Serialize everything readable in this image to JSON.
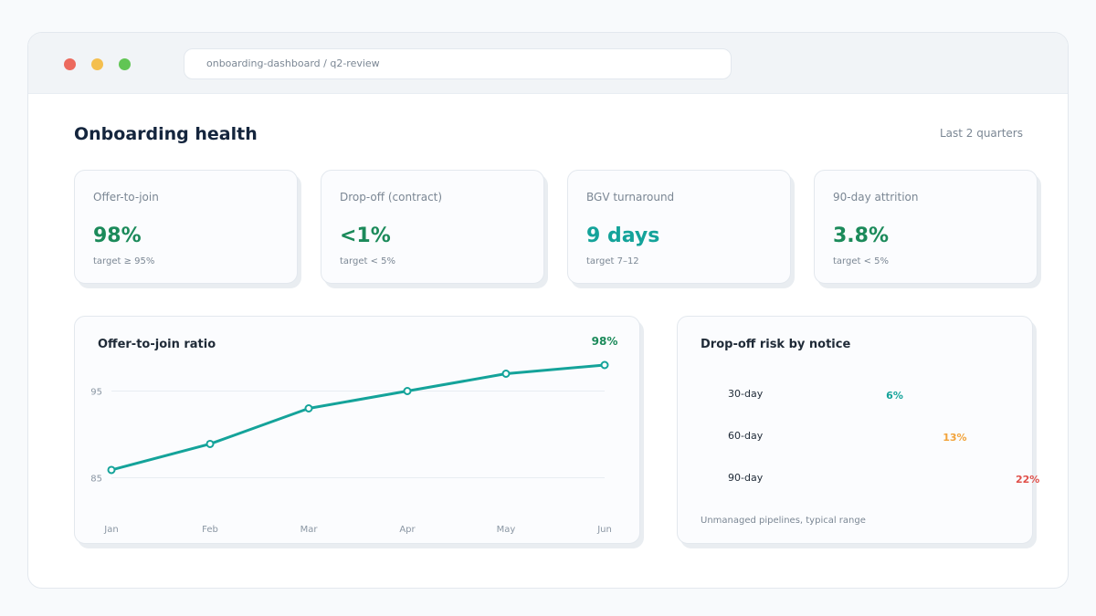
{
  "browser": {
    "url": "onboarding-dashboard / q2-review",
    "dots": {
      "red": "#ec6a5e",
      "yellow": "#f4bf4f",
      "green": "#61c554"
    }
  },
  "header": {
    "title": "Onboarding health",
    "period": "Last 2 quarters"
  },
  "kpis": [
    {
      "label": "Offer-to-join",
      "value": "98%",
      "target": "target ≥ 95%",
      "color": "#1b8a5a"
    },
    {
      "label": "Drop-off (contract)",
      "value": "<1%",
      "target": "target < 5%",
      "color": "#1b8a5a"
    },
    {
      "label": "BGV turnaround",
      "value": "9 days",
      "target": "target 7–12",
      "color": "#14a39a"
    },
    {
      "label": "90-day attrition",
      "value": "3.8%",
      "target": "target < 5%",
      "color": "#1b8a5a"
    }
  ],
  "line_panel": {
    "title": "Offer-to-join ratio",
    "end_label": "98%"
  },
  "risk_panel": {
    "title": "Drop-off risk by notice",
    "rows": [
      {
        "label": "30-day",
        "value": "6%",
        "pct": 6,
        "color": "#14a39a"
      },
      {
        "label": "60-day",
        "value": "13%",
        "pct": 13,
        "color": "#f2a33a"
      },
      {
        "label": "90-day",
        "value": "22%",
        "pct": 22,
        "color": "#e0504a"
      }
    ],
    "note": "Unmanaged pipelines, typical range"
  },
  "chart_data": {
    "type": "line",
    "categories": [
      "Jan",
      "Feb",
      "Mar",
      "Apr",
      "May",
      "Jun"
    ],
    "series": [
      {
        "values": [
          85.9,
          88.9,
          93.0,
          95.0,
          97.0,
          98.0
        ]
      }
    ],
    "yticks": [
      85,
      95
    ],
    "ylim": [
      80,
      100
    ],
    "grid": true,
    "line_color": "#14a39a",
    "end_label_color": "#1b8a5a"
  }
}
